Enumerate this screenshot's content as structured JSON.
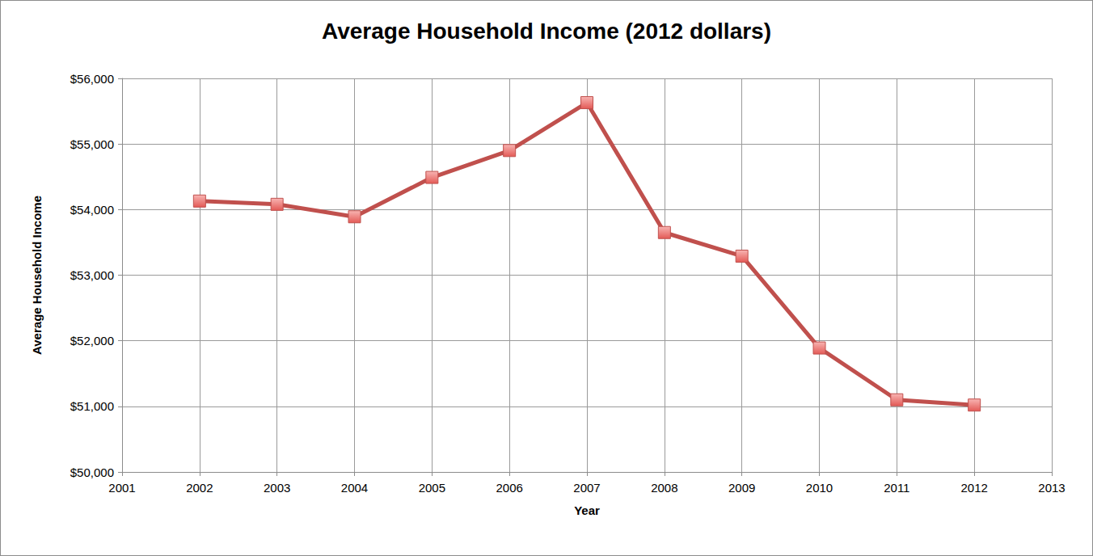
{
  "chart_data": {
    "type": "line",
    "title": "Average Household Income (2012 dollars)",
    "x_label": "Year",
    "y_label": "Average Household Income",
    "x": [
      2002,
      2003,
      2004,
      2005,
      2006,
      2007,
      2008,
      2009,
      2010,
      2011,
      2012
    ],
    "values": [
      54130,
      54080,
      53890,
      54490,
      54900,
      55630,
      53650,
      53290,
      51890,
      51100,
      51020
    ],
    "color": "#c0504d",
    "marker": "square",
    "line_style": "solid",
    "xlim": [
      2001,
      2013
    ],
    "xticks": [
      2001,
      2002,
      2003,
      2004,
      2005,
      2006,
      2007,
      2008,
      2009,
      2010,
      2011,
      2012,
      2013
    ],
    "ylim": [
      50000,
      56000
    ],
    "yticks": [
      {
        "value": 50000,
        "label": "$50,000"
      },
      {
        "value": 51000,
        "label": "$51,000"
      },
      {
        "value": 52000,
        "label": "$52,000"
      },
      {
        "value": 53000,
        "label": "$53,000"
      },
      {
        "value": 54000,
        "label": "$54,000"
      },
      {
        "value": 55000,
        "label": "$55,000"
      },
      {
        "value": 56000,
        "label": "$56,000"
      }
    ],
    "grid": true
  }
}
